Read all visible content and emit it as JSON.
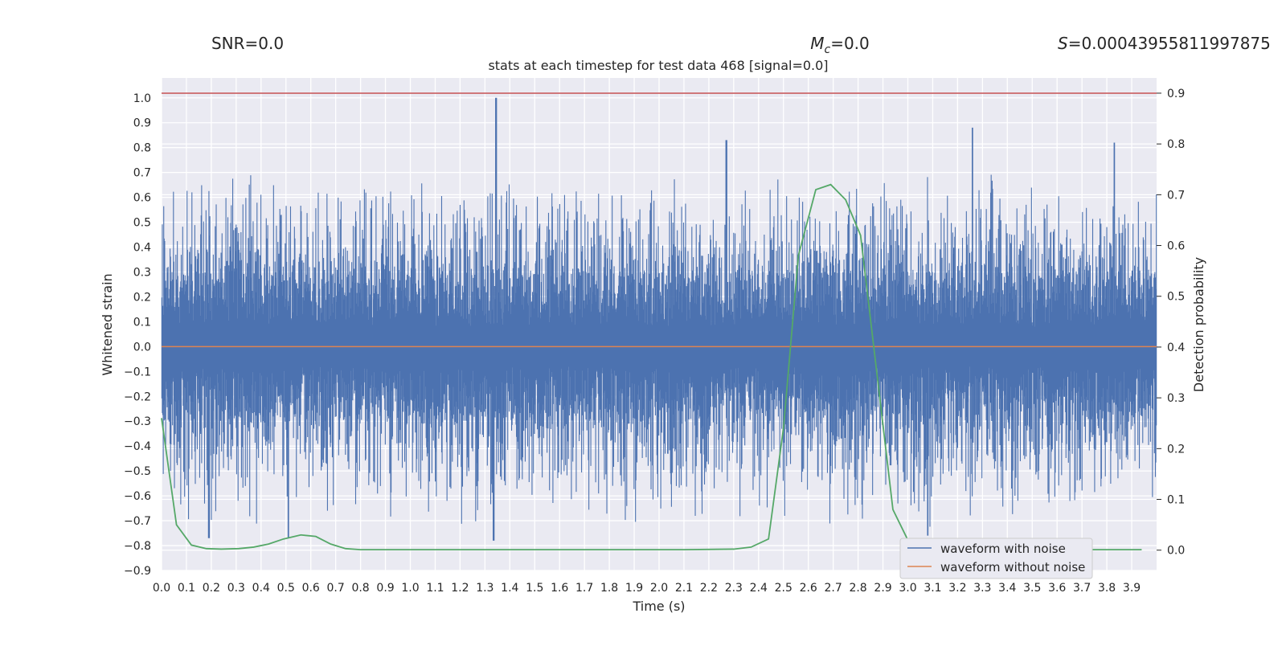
{
  "chart_data": {
    "type": "line",
    "title": "stats at each timestep for test data 468 [signal=0.0]",
    "stats": {
      "snr": "SNR=0.0",
      "mc_symbol": "M",
      "mc_sub": "c",
      "mc_value": "=0.0",
      "s_symbol": "S",
      "s_value": "=0.00043955811997875"
    },
    "xlabel": "Time (s)",
    "ylabel_left": "Whitened strain",
    "ylabel_right": "Detection probability",
    "xlim": [
      0.0,
      4.0
    ],
    "ylim_left": [
      -0.9,
      1.08
    ],
    "ylim_right": [
      -0.04,
      0.93
    ],
    "xticks": [
      "0.0",
      "0.1",
      "0.2",
      "0.3",
      "0.4",
      "0.5",
      "0.6",
      "0.7",
      "0.8",
      "0.9",
      "1.0",
      "1.1",
      "1.2",
      "1.3",
      "1.4",
      "1.5",
      "1.6",
      "1.7",
      "1.8",
      "1.9",
      "2.0",
      "2.1",
      "2.2",
      "2.3",
      "2.4",
      "2.5",
      "2.6",
      "2.7",
      "2.8",
      "2.9",
      "3.0",
      "3.1",
      "3.2",
      "3.3",
      "3.4",
      "3.5",
      "3.6",
      "3.7",
      "3.8",
      "3.9"
    ],
    "yticks_left": [
      "1.0",
      "0.9",
      "0.8",
      "0.7",
      "0.6",
      "0.5",
      "0.4",
      "0.3",
      "0.2",
      "0.1",
      "0.0",
      "−0.1",
      "−0.2",
      "−0.3",
      "−0.4",
      "−0.5",
      "−0.6",
      "−0.7",
      "−0.8",
      "−0.9"
    ],
    "yticks_right": [
      "0.9",
      "0.8",
      "0.7",
      "0.6",
      "0.5",
      "0.4",
      "0.3",
      "0.2",
      "0.1",
      "0.0"
    ],
    "threshold": 0.9,
    "series": [
      {
        "name": "waveform with noise",
        "color": "#4c72b0",
        "axis": "left",
        "noise": {
          "samples": 2048,
          "max": 0.71,
          "min": -0.73,
          "spikes": [
            [
              1.345,
              1.0
            ],
            [
              2.27,
              0.83
            ],
            [
              3.26,
              0.88
            ],
            [
              3.83,
              0.82
            ],
            [
              1.335,
              -0.78
            ],
            [
              0.51,
              -0.77
            ],
            [
              0.19,
              -0.77
            ],
            [
              3.08,
              -0.76
            ]
          ]
        }
      },
      {
        "name": "waveform without noise",
        "color": "#dd8452",
        "axis": "left",
        "x": [
          0.0,
          4.0
        ],
        "y": [
          0.0,
          0.0
        ]
      },
      {
        "name": "detection probability",
        "color": "#55a868",
        "axis": "right",
        "x": [
          0.0,
          0.04,
          0.06,
          0.12,
          0.18,
          0.24,
          0.31,
          0.37,
          0.43,
          0.49,
          0.56,
          0.62,
          0.68,
          0.74,
          0.8,
          0.86,
          0.92,
          1.0,
          1.2,
          1.5,
          1.8,
          2.1,
          2.3,
          2.37,
          2.44,
          2.5,
          2.56,
          2.63,
          2.69,
          2.75,
          2.81,
          2.88,
          2.94,
          3.0,
          3.06,
          3.12,
          3.2,
          3.3,
          3.5,
          3.7,
          3.94
        ],
        "y": [
          0.26,
          0.12,
          0.05,
          0.01,
          0.003,
          0.002,
          0.003,
          0.006,
          0.012,
          0.022,
          0.03,
          0.027,
          0.012,
          0.003,
          0.001,
          0.001,
          0.001,
          0.001,
          0.001,
          0.001,
          0.001,
          0.001,
          0.002,
          0.006,
          0.022,
          0.24,
          0.58,
          0.71,
          0.72,
          0.69,
          0.62,
          0.33,
          0.08,
          0.02,
          0.002,
          0.001,
          0.001,
          0.001,
          0.001,
          0.001,
          0.001
        ]
      }
    ],
    "legend": [
      {
        "label": "waveform with noise",
        "color": "#4c72b0"
      },
      {
        "label": "waveform without noise",
        "color": "#dd8452"
      }
    ],
    "threshold_color": "#c44e52",
    "grid": true,
    "legend_position": "lower-right"
  }
}
